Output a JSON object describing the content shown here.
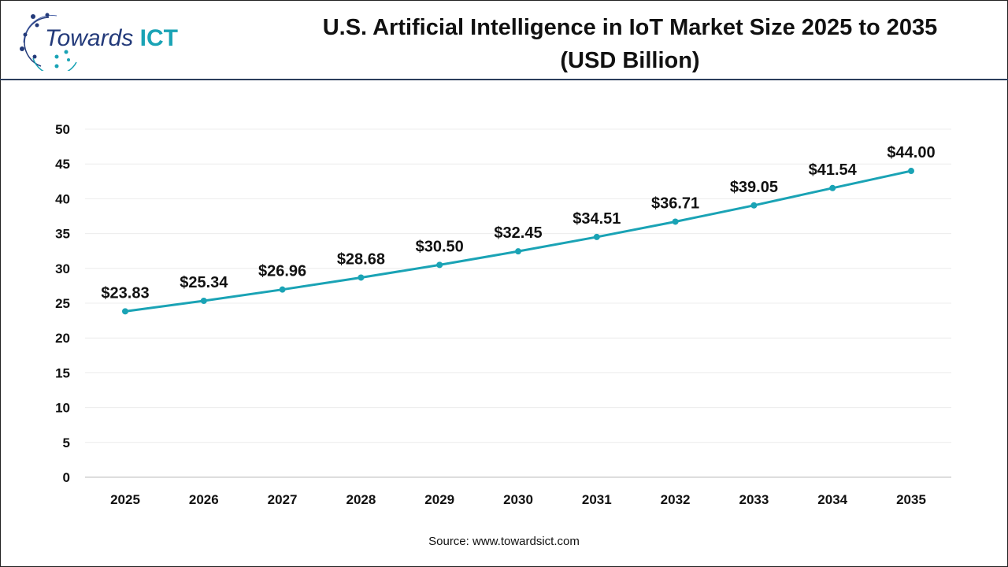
{
  "logo": {
    "text_main": "Towards",
    "text_accent": "ICT"
  },
  "chart_data": {
    "type": "line",
    "title": "U.S. Artificial Intelligence in IoT Market Size 2025 to 2035",
    "subtitle": "(USD Billion)",
    "categories": [
      "2025",
      "2026",
      "2027",
      "2028",
      "2029",
      "2030",
      "2031",
      "2032",
      "2033",
      "2034",
      "2035"
    ],
    "values": [
      23.83,
      25.34,
      26.96,
      28.68,
      30.5,
      32.45,
      34.51,
      36.71,
      39.05,
      41.54,
      44.0
    ],
    "data_labels": [
      "$23.83",
      "$25.34",
      "$26.96",
      "$28.68",
      "$30.50",
      "$32.45",
      "$34.51",
      "$36.71",
      "$39.05",
      "$41.54",
      "$44.00"
    ],
    "yticks": [
      0,
      5,
      10,
      15,
      20,
      25,
      30,
      35,
      40,
      45,
      50
    ],
    "ylim": [
      0,
      50
    ],
    "grid": true,
    "line_color": "#1aa3b5",
    "xlabel": "",
    "ylabel": ""
  },
  "source": "Source: www.towardsict.com"
}
